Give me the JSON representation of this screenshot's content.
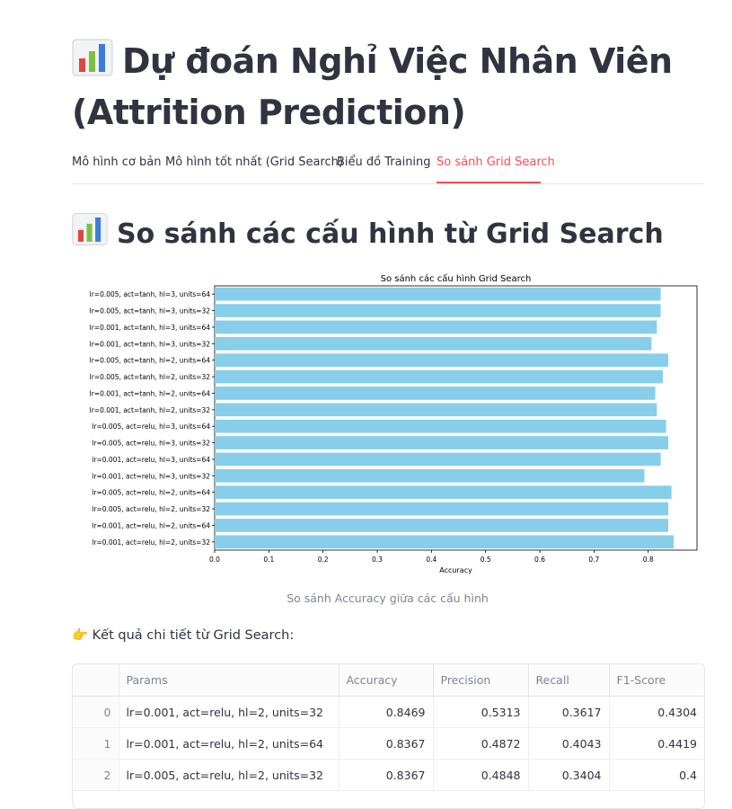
{
  "page": {
    "title": "Dự đoán Nghỉ Việc Nhân Viên (Attrition Prediction)",
    "title_icon": "bar-chart-emoji",
    "section_title": "So sánh các cấu hình từ Grid Search",
    "chart_caption": "So sánh Accuracy giữa các cấu hình",
    "results_icon": "pointing-hand-emoji",
    "results_label": "Kết quả chi tiết từ Grid Search:"
  },
  "tabs": [
    {
      "label": "Mô hình cơ bản",
      "active": false
    },
    {
      "label": "Mô hình tốt nhất (Grid Search)",
      "active": false
    },
    {
      "label": "Biểu đồ Training",
      "active": false
    },
    {
      "label": "So sánh Grid Search",
      "active": true
    }
  ],
  "colors": {
    "accent": "#ff4b4b",
    "bar": "#87ceeb"
  },
  "chart_data": {
    "type": "bar",
    "orientation": "horizontal",
    "title": "So sánh các cấu hình Grid Search",
    "xlabel": "Accuracy",
    "ylabel": "",
    "xlim": [
      0,
      0.89
    ],
    "xticks": [
      "0.0",
      "0.1",
      "0.2",
      "0.3",
      "0.4",
      "0.5",
      "0.6",
      "0.7",
      "0.8"
    ],
    "categories": [
      "lr=0.005, act=tanh, hl=3, units=64",
      "lr=0.005, act=tanh, hl=3, units=32",
      "lr=0.001, act=tanh, hl=3, units=64",
      "lr=0.001, act=tanh, hl=3, units=32",
      "lr=0.005, act=tanh, hl=2, units=64",
      "lr=0.005, act=tanh, hl=2, units=32",
      "lr=0.001, act=tanh, hl=2, units=64",
      "lr=0.001, act=tanh, hl=2, units=32",
      "lr=0.005, act=relu, hl=3, units=64",
      "lr=0.005, act=relu, hl=3, units=32",
      "lr=0.001, act=relu, hl=3, units=64",
      "lr=0.001, act=relu, hl=3, units=32",
      "lr=0.005, act=relu, hl=2, units=64",
      "lr=0.005, act=relu, hl=2, units=32",
      "lr=0.001, act=relu, hl=2, units=64",
      "lr=0.001, act=relu, hl=2, units=32"
    ],
    "values": [
      0.823,
      0.823,
      0.816,
      0.806,
      0.837,
      0.827,
      0.813,
      0.816,
      0.833,
      0.837,
      0.823,
      0.793,
      0.843,
      0.837,
      0.837,
      0.847
    ],
    "grid": false,
    "legend": "none"
  },
  "table": {
    "columns": [
      "",
      "Params",
      "Accuracy",
      "Precision",
      "Recall",
      "F1-Score"
    ],
    "rows": [
      [
        "0",
        "lr=0.001, act=relu, hl=2, units=32",
        "0.8469",
        "0.5313",
        "0.3617",
        "0.4304"
      ],
      [
        "1",
        "lr=0.001, act=relu, hl=2, units=64",
        "0.8367",
        "0.4872",
        "0.4043",
        "0.4419"
      ],
      [
        "2",
        "lr=0.005, act=relu, hl=2, units=32",
        "0.8367",
        "0.4848",
        "0.3404",
        "0.4"
      ]
    ]
  }
}
